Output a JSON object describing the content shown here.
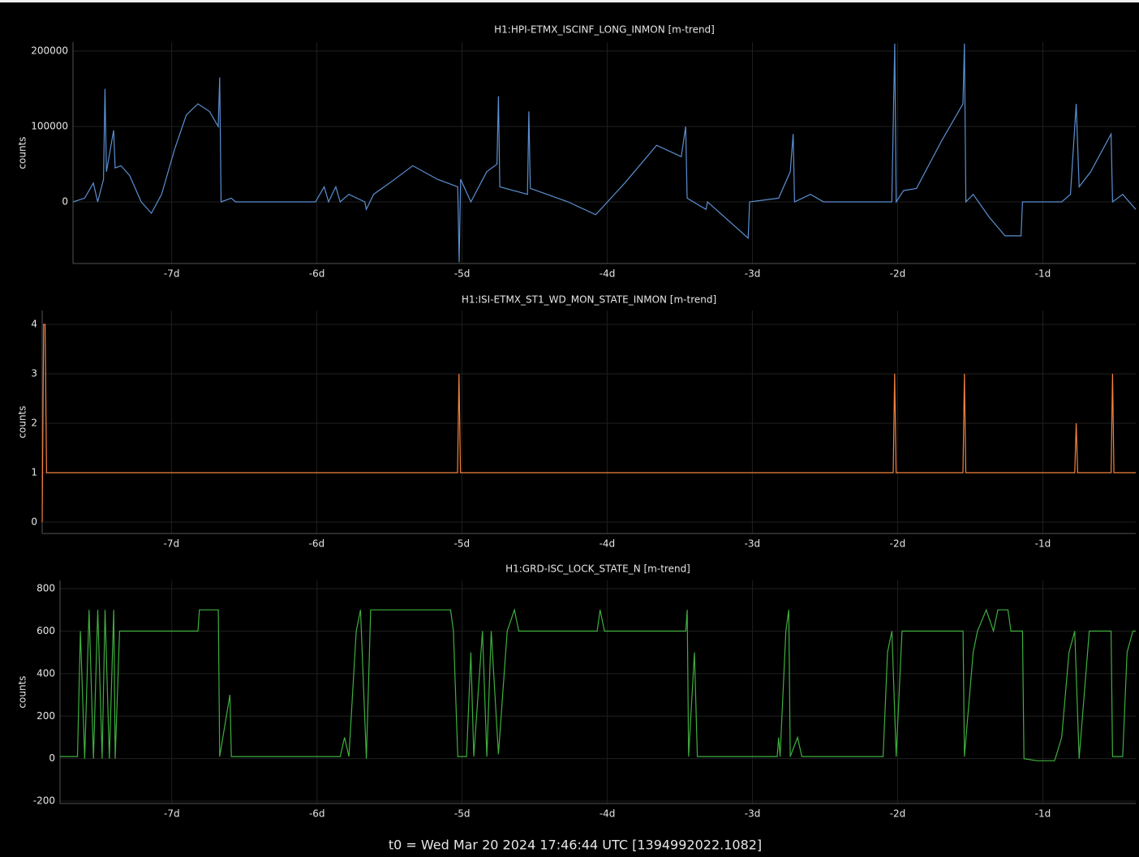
{
  "chart_data": [
    {
      "type": "line",
      "title": "H1:HPI-ETMX_ISCINF_LONG_INMON [m-trend]",
      "y_label": "counts",
      "color": "#5b8fd1",
      "grid": true,
      "xlim": [
        -7.68,
        -0.36
      ],
      "ylim": [
        -81700,
        211800
      ],
      "xticks": [
        {
          "value": -7,
          "label": "-7d"
        },
        {
          "value": -6,
          "label": "-6d"
        },
        {
          "value": -5,
          "label": "-5d"
        },
        {
          "value": -4,
          "label": "-4d"
        },
        {
          "value": -3,
          "label": "-3d"
        },
        {
          "value": -2,
          "label": "-2d"
        },
        {
          "value": -1,
          "label": "-1d"
        }
      ],
      "yticks": [
        0,
        100000,
        200000
      ],
      "x": [
        -7.68,
        -7.6,
        -7.54,
        -7.51,
        -7.47,
        -7.46,
        -7.45,
        -7.4,
        -7.39,
        -7.35,
        -7.29,
        -7.21,
        -7.14,
        -7.07,
        -6.98,
        -6.9,
        -6.82,
        -6.74,
        -6.68,
        -6.67,
        -6.66,
        -6.59,
        -6.56,
        -6.01,
        -5.95,
        -5.92,
        -5.87,
        -5.84,
        -5.78,
        -5.67,
        -5.66,
        -5.61,
        -5.5,
        -5.34,
        -5.17,
        -5.03,
        -5.02,
        -5.01,
        -4.94,
        -4.83,
        -4.76,
        -4.75,
        -4.74,
        -4.55,
        -4.54,
        -4.53,
        -4.27,
        -4.08,
        -3.88,
        -3.66,
        -3.49,
        -3.46,
        -3.45,
        -3.32,
        -3.31,
        -3.03,
        -3.02,
        -2.82,
        -2.74,
        -2.72,
        -2.71,
        -2.6,
        -2.51,
        -2.04,
        -2.02,
        -2.01,
        -1.96,
        -1.87,
        -1.7,
        -1.55,
        -1.54,
        -1.53,
        -1.48,
        -1.37,
        -1.26,
        -1.15,
        -1.14,
        -0.87,
        -0.81,
        -0.77,
        -0.75,
        -0.67,
        -0.53,
        -0.52,
        -0.45,
        -0.36
      ],
      "values": [
        0,
        5000,
        25000,
        0,
        30000,
        150000,
        40000,
        95000,
        45000,
        48000,
        35000,
        0,
        -15000,
        10000,
        70000,
        115000,
        130000,
        120000,
        100000,
        165000,
        0,
        5000,
        0,
        0,
        20000,
        0,
        20000,
        0,
        10000,
        0,
        -10000,
        10000,
        25000,
        48000,
        30000,
        20000,
        -80000,
        30000,
        0,
        40000,
        50000,
        140000,
        20000,
        10000,
        120000,
        18000,
        0,
        -17000,
        25000,
        75000,
        60000,
        100000,
        5000,
        -10000,
        0,
        -48000,
        0,
        5000,
        40000,
        90000,
        0,
        10000,
        0,
        0,
        210000,
        0,
        15000,
        18000,
        80000,
        130000,
        210000,
        0,
        10000,
        -20000,
        -45000,
        -45000,
        0,
        0,
        10000,
        130000,
        20000,
        40000,
        90000,
        0,
        10000,
        -10000
      ]
    },
    {
      "type": "line",
      "title": "H1:ISI-ETMX_ST1_WD_MON_STATE_INMON [m-trend]",
      "y_label": "counts",
      "color": "#f5823f",
      "grid": true,
      "xlim": [
        -7.89,
        -0.36
      ],
      "ylim": [
        -0.23,
        4.28
      ],
      "xticks": [
        {
          "value": -7,
          "label": "-7d"
        },
        {
          "value": -6,
          "label": "-6d"
        },
        {
          "value": -5,
          "label": "-5d"
        },
        {
          "value": -4,
          "label": "-4d"
        },
        {
          "value": -3,
          "label": "-3d"
        },
        {
          "value": -2,
          "label": "-2d"
        },
        {
          "value": -1,
          "label": "-1d"
        }
      ],
      "yticks": [
        0,
        1,
        2,
        3,
        4
      ],
      "x": [
        -7.89,
        -7.88,
        -7.87,
        -7.86,
        -5.03,
        -5.02,
        -5.01,
        -2.03,
        -2.02,
        -2.01,
        -1.55,
        -1.54,
        -1.53,
        -0.78,
        -0.77,
        -0.76,
        -0.53,
        -0.52,
        -0.51,
        -0.36
      ],
      "values": [
        0,
        4,
        4,
        1,
        1,
        3,
        1,
        1,
        3,
        1,
        1,
        3,
        1,
        1,
        2,
        1,
        1,
        3,
        1,
        1
      ]
    },
    {
      "type": "line",
      "title": "H1:GRD-ISC_LOCK_STATE_N [m-trend]",
      "y_label": "counts",
      "color": "#3fae3f",
      "grid": true,
      "xlim": [
        -7.77,
        -0.36
      ],
      "ylim": [
        -211,
        838
      ],
      "xticks": [
        {
          "value": -7,
          "label": "-7d"
        },
        {
          "value": -6,
          "label": "-6d"
        },
        {
          "value": -5,
          "label": "-5d"
        },
        {
          "value": -4,
          "label": "-4d"
        },
        {
          "value": -3,
          "label": "-3d"
        },
        {
          "value": -2,
          "label": "-2d"
        },
        {
          "value": -1,
          "label": "-1d"
        }
      ],
      "yticks": [
        -200,
        0,
        200,
        400,
        600,
        800
      ],
      "x": [
        -7.77,
        -7.65,
        -7.63,
        -7.6,
        -7.57,
        -7.54,
        -7.51,
        -7.48,
        -7.46,
        -7.43,
        -7.4,
        -7.39,
        -7.36,
        -7.35,
        -6.82,
        -6.81,
        -6.68,
        -6.67,
        -6.6,
        -6.59,
        -6.09,
        -5.84,
        -5.81,
        -5.78,
        -5.73,
        -5.7,
        -5.66,
        -5.63,
        -5.08,
        -5.06,
        -5.03,
        -4.97,
        -4.94,
        -4.92,
        -4.86,
        -4.83,
        -4.8,
        -4.75,
        -4.69,
        -4.64,
        -4.61,
        -4.07,
        -4.05,
        -4.02,
        -3.46,
        -3.45,
        -3.44,
        -3.4,
        -3.38,
        -3.32,
        -2.83,
        -2.82,
        -2.81,
        -2.77,
        -2.75,
        -2.74,
        -2.69,
        -2.66,
        -2.53,
        -2.1,
        -2.07,
        -2.04,
        -2.01,
        -1.97,
        -1.55,
        -1.54,
        -1.48,
        -1.45,
        -1.39,
        -1.34,
        -1.31,
        -1.24,
        -1.22,
        -1.14,
        -1.13,
        -1.04,
        -0.92,
        -0.91,
        -0.87,
        -0.82,
        -0.78,
        -0.75,
        -0.68,
        -0.53,
        -0.52,
        -0.45,
        -0.42,
        -0.38,
        -0.36
      ],
      "values": [
        10,
        10,
        600,
        0,
        700,
        0,
        700,
        0,
        700,
        0,
        700,
        0,
        600,
        600,
        600,
        700,
        700,
        10,
        300,
        10,
        10,
        10,
        100,
        10,
        600,
        700,
        0,
        700,
        700,
        600,
        10,
        10,
        500,
        10,
        600,
        10,
        600,
        20,
        600,
        700,
        600,
        600,
        700,
        600,
        600,
        700,
        10,
        500,
        10,
        10,
        10,
        100,
        10,
        600,
        700,
        10,
        100,
        10,
        10,
        10,
        500,
        600,
        10,
        600,
        600,
        10,
        500,
        600,
        700,
        600,
        700,
        700,
        600,
        600,
        0,
        -10,
        -10,
        10,
        100,
        500,
        600,
        0,
        600,
        600,
        10,
        10,
        500,
        600,
        600
      ]
    }
  ],
  "footer": "t0 = Wed Mar 20 2024 17:46:44 UTC [1394992022.1082]"
}
